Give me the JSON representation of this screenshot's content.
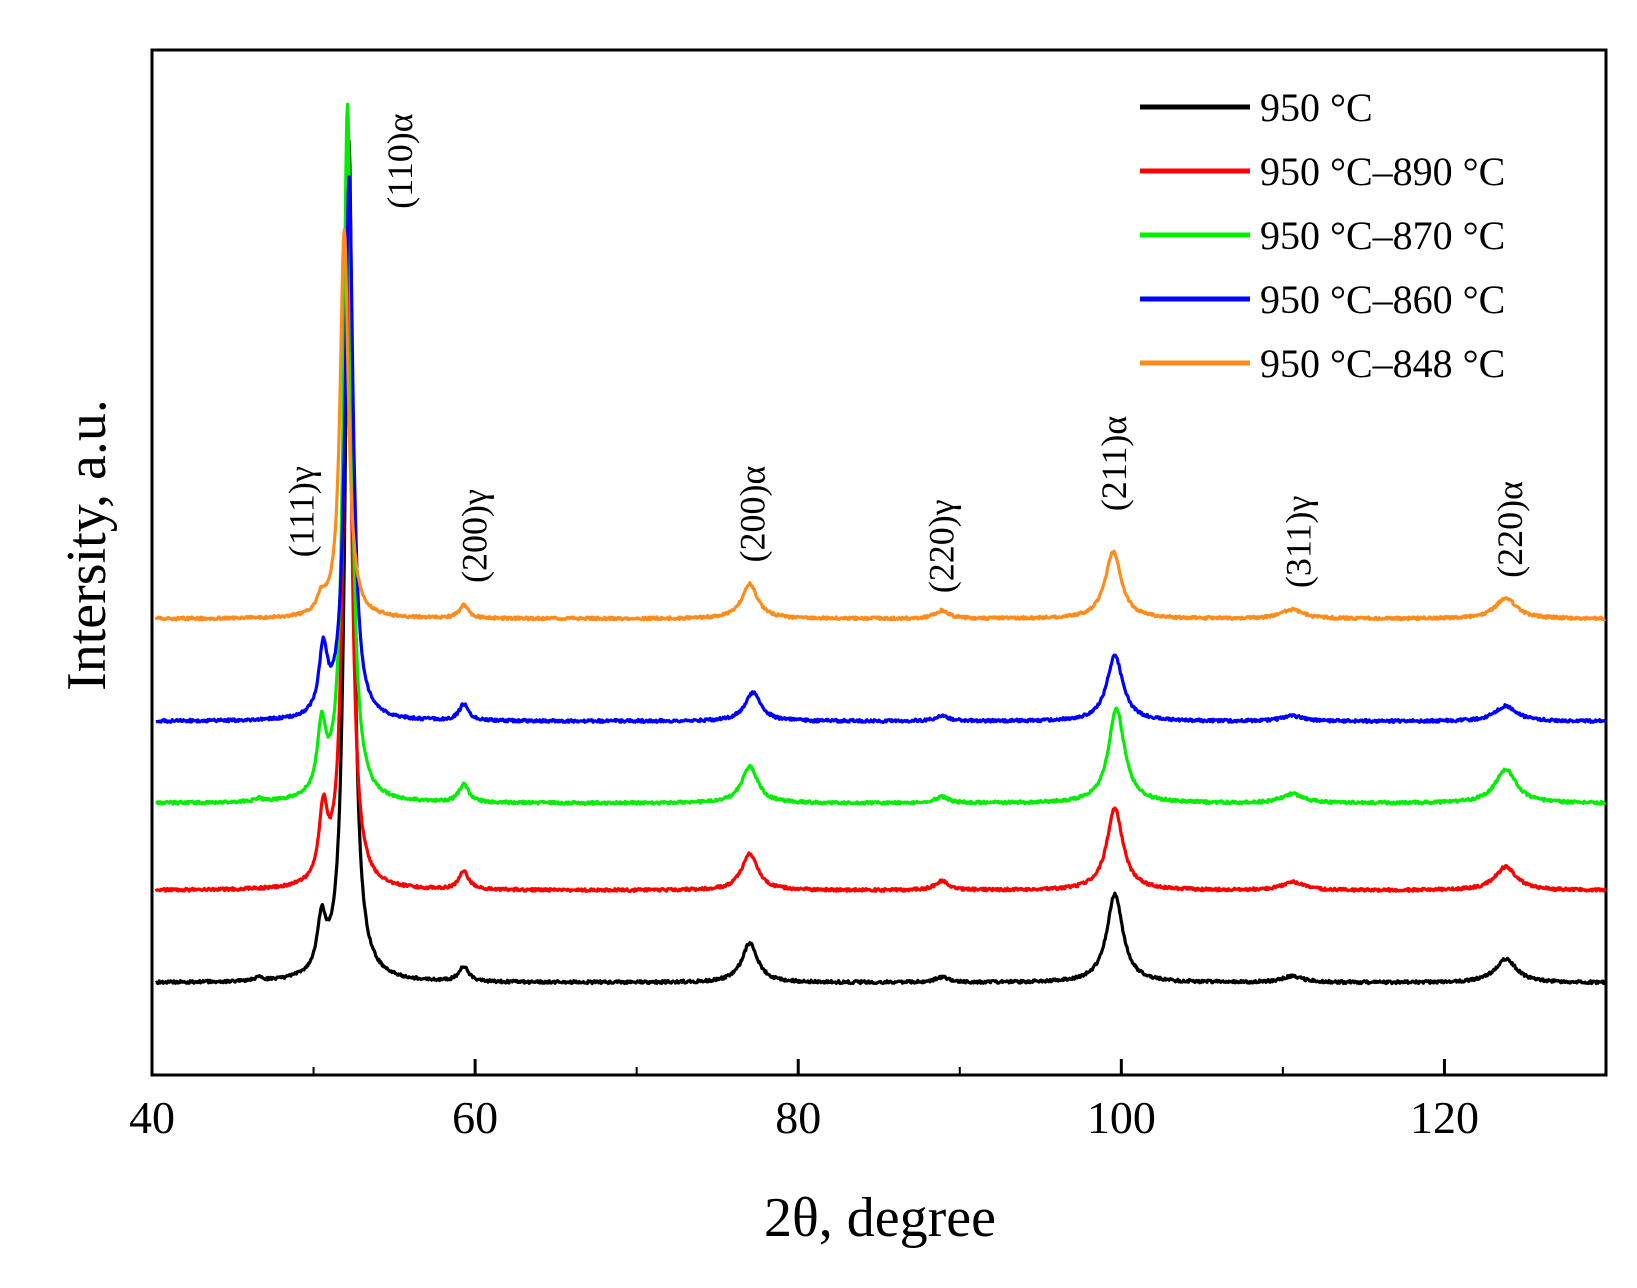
{
  "chart_data": {
    "type": "line",
    "title": "",
    "xlabel": "2θ, degree",
    "ylabel": "Intersity, a.u.",
    "xlim": [
      40,
      130
    ],
    "x_ticks": [
      40,
      60,
      80,
      100,
      120
    ],
    "x_tick_labels": [
      "40",
      "60",
      "80",
      "100",
      "120"
    ],
    "ylim": [
      0,
      100
    ],
    "y_ticks_shown": false,
    "legend_position": "top-right",
    "series": [
      {
        "name": "950 °C",
        "color": "#000000",
        "baseline": 9,
        "peaks": [
          {
            "x": 46.6,
            "h": 0.3,
            "w": 0.3
          },
          {
            "x": 50.5,
            "h": 5.0,
            "w": 0.32
          },
          {
            "x": 52.2,
            "h": 82.0,
            "w": 0.3
          },
          {
            "x": 59.3,
            "h": 1.5,
            "w": 0.35
          },
          {
            "x": 77.0,
            "h": 3.8,
            "w": 0.6
          },
          {
            "x": 88.9,
            "h": 0.5,
            "w": 0.5
          },
          {
            "x": 99.6,
            "h": 8.6,
            "w": 0.6
          },
          {
            "x": 110.6,
            "h": 0.6,
            "w": 0.8
          },
          {
            "x": 123.8,
            "h": 2.3,
            "w": 0.8
          }
        ]
      },
      {
        "name": "950 °C–890 °C",
        "color": "#ff0000",
        "baseline": 18,
        "peaks": [
          {
            "x": 50.6,
            "h": 6.8,
            "w": 0.32
          },
          {
            "x": 52.1,
            "h": 65.0,
            "w": 0.3
          },
          {
            "x": 59.3,
            "h": 1.8,
            "w": 0.35
          },
          {
            "x": 77.0,
            "h": 3.6,
            "w": 0.6
          },
          {
            "x": 88.9,
            "h": 0.9,
            "w": 0.5
          },
          {
            "x": 99.6,
            "h": 8.0,
            "w": 0.6
          },
          {
            "x": 110.6,
            "h": 0.8,
            "w": 0.8
          },
          {
            "x": 123.8,
            "h": 2.3,
            "w": 0.8
          }
        ]
      },
      {
        "name": "950 °C–870 °C",
        "color": "#00ee00",
        "baseline": 26.5,
        "peaks": [
          {
            "x": 46.6,
            "h": 0.3,
            "w": 0.3
          },
          {
            "x": 50.5,
            "h": 6.6,
            "w": 0.32
          },
          {
            "x": 52.1,
            "h": 68.0,
            "w": 0.3
          },
          {
            "x": 59.3,
            "h": 1.8,
            "w": 0.35
          },
          {
            "x": 77.0,
            "h": 3.6,
            "w": 0.6
          },
          {
            "x": 88.9,
            "h": 0.6,
            "w": 0.5
          },
          {
            "x": 99.7,
            "h": 9.2,
            "w": 0.6
          },
          {
            "x": 110.6,
            "h": 0.9,
            "w": 0.8
          },
          {
            "x": 123.8,
            "h": 3.3,
            "w": 0.8
          }
        ]
      },
      {
        "name": "950 °C–860 °C",
        "color": "#0000ff",
        "baseline": 34.5,
        "peaks": [
          {
            "x": 50.6,
            "h": 6.3,
            "w": 0.32
          },
          {
            "x": 52.2,
            "h": 53.0,
            "w": 0.3
          },
          {
            "x": 59.3,
            "h": 1.6,
            "w": 0.35
          },
          {
            "x": 77.2,
            "h": 2.8,
            "w": 0.6
          },
          {
            "x": 88.9,
            "h": 0.5,
            "w": 0.5
          },
          {
            "x": 99.6,
            "h": 6.4,
            "w": 0.6
          },
          {
            "x": 110.6,
            "h": 0.5,
            "w": 0.8
          },
          {
            "x": 123.8,
            "h": 1.5,
            "w": 0.8
          }
        ]
      },
      {
        "name": "950 °C–848 °C",
        "color": "#ff8c1a",
        "baseline": 44.5,
        "peaks": [
          {
            "x": 50.5,
            "h": 1.5,
            "w": 0.32
          },
          {
            "x": 51.9,
            "h": 38.0,
            "w": 0.3
          },
          {
            "x": 59.3,
            "h": 1.3,
            "w": 0.35
          },
          {
            "x": 77.0,
            "h": 3.4,
            "w": 0.6
          },
          {
            "x": 88.9,
            "h": 0.8,
            "w": 0.5
          },
          {
            "x": 99.5,
            "h": 6.5,
            "w": 0.6
          },
          {
            "x": 110.6,
            "h": 0.9,
            "w": 0.8
          },
          {
            "x": 123.8,
            "h": 2.0,
            "w": 0.8
          }
        ]
      }
    ],
    "annotations": [
      {
        "text": "(111)γ",
        "x": 50.0,
        "y": 50.5
      },
      {
        "text": "(110)α",
        "x": 56.1,
        "y": 84.5
      },
      {
        "text": "(200)γ",
        "x": 60.7,
        "y": 48.0
      },
      {
        "text": "(200)α",
        "x": 77.9,
        "y": 50.0
      },
      {
        "text": "(220)γ",
        "x": 89.6,
        "y": 47.0
      },
      {
        "text": "(211)α",
        "x": 100.3,
        "y": 55.0
      },
      {
        "text": "(311)γ",
        "x": 111.7,
        "y": 47.5
      },
      {
        "text": "(220)α",
        "x": 124.8,
        "y": 48.5
      }
    ]
  }
}
